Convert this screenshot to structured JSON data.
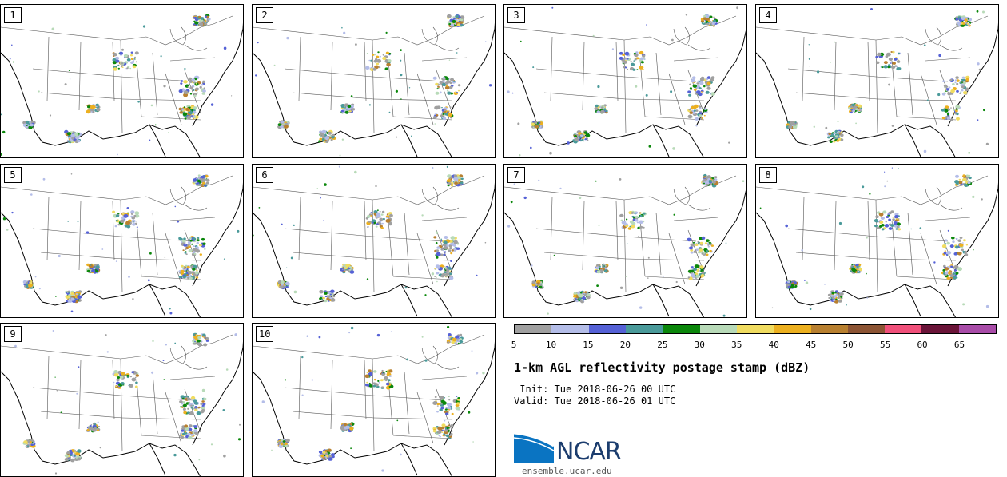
{
  "panels": [
    "1",
    "2",
    "3",
    "4",
    "5",
    "6",
    "7",
    "8",
    "9",
    "10"
  ],
  "colorbar": {
    "colors": [
      "#a0a0a0",
      "#b4bde8",
      "#5561d6",
      "#4a9a9a",
      "#0b870b",
      "#b8dab8",
      "#f0dc60",
      "#ecb020",
      "#b88030",
      "#8c5434",
      "#f0507a",
      "#6a1438",
      "#a84ca8"
    ],
    "tick_labels": [
      "5",
      "10",
      "15",
      "20",
      "25",
      "30",
      "35",
      "40",
      "45",
      "50",
      "55",
      "60",
      "65"
    ]
  },
  "title": "1-km AGL reflectivity postage stamp (dBZ)",
  "init_line": " Init: Tue 2018-06-26 00 UTC",
  "valid_line": "Valid: Tue 2018-06-26 01 UTC",
  "logo": {
    "name": "NCAR",
    "url": "ensemble.ucar.edu"
  }
}
